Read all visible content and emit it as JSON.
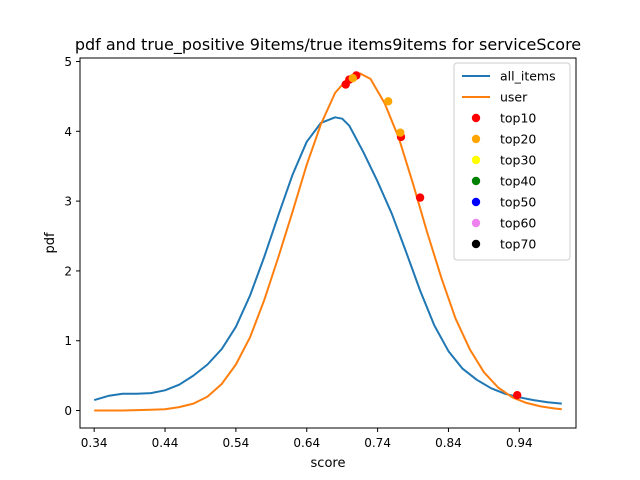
{
  "chart_data": {
    "type": "line",
    "title": "pdf and true_positive 9items/true items9items for serviceScore",
    "xlabel": "score",
    "ylabel": "pdf",
    "xlim": [
      0.32,
      1.02
    ],
    "ylim": [
      -0.25,
      5.05
    ],
    "xticks": [
      0.34,
      0.44,
      0.54,
      0.64,
      0.74,
      0.84,
      0.94
    ],
    "xtick_labels": [
      "0.34",
      "0.44",
      "0.54",
      "0.64",
      "0.74",
      "0.84",
      "0.94"
    ],
    "yticks": [
      0,
      1,
      2,
      3,
      4,
      5
    ],
    "ytick_labels": [
      "0",
      "1",
      "2",
      "3",
      "4",
      "5"
    ],
    "grid": false,
    "legend_position": "top-right",
    "series": [
      {
        "name": "all_items",
        "color": "#1f77b4",
        "x": [
          0.34,
          0.36,
          0.38,
          0.4,
          0.42,
          0.44,
          0.46,
          0.48,
          0.5,
          0.52,
          0.54,
          0.56,
          0.58,
          0.6,
          0.62,
          0.64,
          0.66,
          0.68,
          0.69,
          0.7,
          0.72,
          0.74,
          0.76,
          0.78,
          0.8,
          0.82,
          0.84,
          0.86,
          0.88,
          0.9,
          0.92,
          0.94,
          0.96,
          0.98,
          1.0
        ],
        "y": [
          0.15,
          0.21,
          0.24,
          0.24,
          0.25,
          0.29,
          0.37,
          0.5,
          0.66,
          0.88,
          1.2,
          1.65,
          2.2,
          2.8,
          3.38,
          3.85,
          4.12,
          4.2,
          4.18,
          4.08,
          3.7,
          3.28,
          2.82,
          2.28,
          1.72,
          1.22,
          0.85,
          0.6,
          0.44,
          0.32,
          0.24,
          0.19,
          0.15,
          0.12,
          0.1
        ]
      },
      {
        "name": "user",
        "color": "#ff7f0e",
        "x": [
          0.34,
          0.38,
          0.42,
          0.44,
          0.46,
          0.48,
          0.5,
          0.52,
          0.54,
          0.56,
          0.58,
          0.6,
          0.62,
          0.64,
          0.66,
          0.68,
          0.7,
          0.715,
          0.73,
          0.75,
          0.77,
          0.79,
          0.81,
          0.83,
          0.85,
          0.87,
          0.89,
          0.91,
          0.93,
          0.95,
          0.97,
          0.99,
          1.0
        ],
        "y": [
          0.0,
          0.0,
          0.01,
          0.02,
          0.05,
          0.1,
          0.2,
          0.38,
          0.66,
          1.05,
          1.58,
          2.2,
          2.85,
          3.52,
          4.1,
          4.55,
          4.78,
          4.83,
          4.75,
          4.4,
          3.9,
          3.25,
          2.55,
          1.9,
          1.32,
          0.88,
          0.55,
          0.33,
          0.19,
          0.11,
          0.06,
          0.03,
          0.02
        ]
      }
    ],
    "scatter_series": [
      {
        "name": "top10",
        "color": "#ff0000",
        "x": [
          0.695,
          0.7,
          0.71,
          0.773,
          0.8,
          0.937
        ],
        "y": [
          4.67,
          4.74,
          4.8,
          3.92,
          3.05,
          0.22
        ]
      },
      {
        "name": "top20",
        "color": "#ffa500",
        "x": [
          0.705,
          0.755,
          0.772
        ],
        "y": [
          4.76,
          4.43,
          3.98
        ]
      },
      {
        "name": "top30",
        "color": "#ffff00",
        "x": [],
        "y": []
      },
      {
        "name": "top40",
        "color": "#008000",
        "x": [],
        "y": []
      },
      {
        "name": "top50",
        "color": "#0000ff",
        "x": [],
        "y": []
      },
      {
        "name": "top60",
        "color": "#ee82ee",
        "x": [],
        "y": []
      },
      {
        "name": "top70",
        "color": "#000000",
        "x": [],
        "y": []
      }
    ]
  }
}
